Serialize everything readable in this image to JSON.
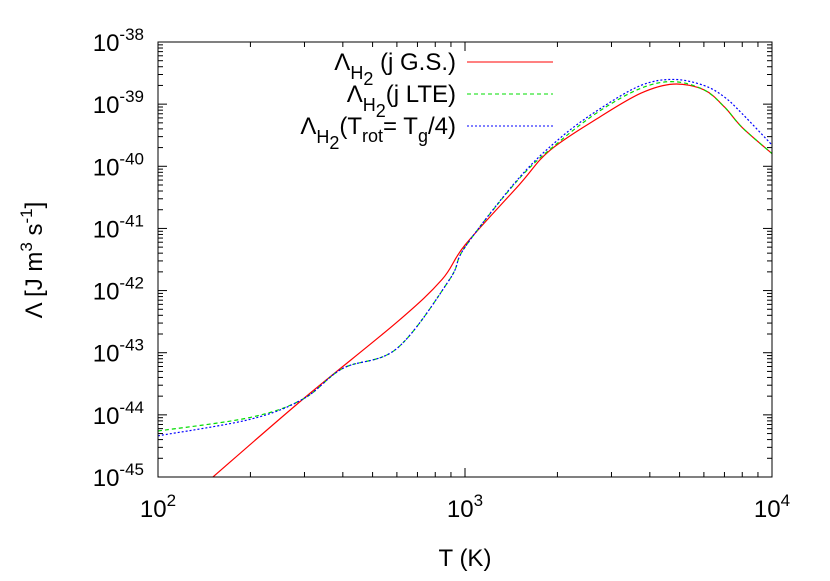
{
  "chart_data": {
    "type": "line",
    "xlabel": "T (K)",
    "ylabel": {
      "main": "Λ [J m",
      "exp1": "3",
      "mid": " s",
      "exp2": "-1",
      "end": "]"
    },
    "xscale": "log",
    "yscale": "log",
    "xlim": [
      100,
      10000
    ],
    "ylim": [
      1e-45,
      1e-38
    ],
    "grid": false,
    "legend_position": "top-right",
    "xticks": [
      {
        "base": "10",
        "exp": "2"
      },
      {
        "base": "10",
        "exp": "3"
      },
      {
        "base": "10",
        "exp": "4"
      }
    ],
    "yticks": [
      {
        "base": "10",
        "exp": "-38"
      },
      {
        "base": "10",
        "exp": "-39"
      },
      {
        "base": "10",
        "exp": "-40"
      },
      {
        "base": "10",
        "exp": "-41"
      },
      {
        "base": "10",
        "exp": "-42"
      },
      {
        "base": "10",
        "exp": "-43"
      },
      {
        "base": "10",
        "exp": "-44"
      },
      {
        "base": "10",
        "exp": "-45"
      }
    ],
    "series": [
      {
        "name": {
          "sym": "Λ",
          "sub": "H",
          "subsub": "2",
          "text": " (j G.S.)"
        },
        "color": "#ff0000",
        "dash": "solid",
        "points": [
          [
            151,
            1e-45
          ],
          [
            297,
            1.8e-44
          ],
          [
            600,
            3.1e-43
          ],
          [
            841,
            1.5e-42
          ],
          [
            1000,
            5.4e-42
          ],
          [
            1500,
            5e-41
          ],
          [
            1890,
            1.8e-40
          ],
          [
            2760,
            6.3e-40
          ],
          [
            3740,
            1.5e-39
          ],
          [
            4770,
            2.1e-39
          ],
          [
            6000,
            1.7e-39
          ],
          [
            7000,
            9e-40
          ],
          [
            8000,
            4.2e-40
          ],
          [
            10000,
            1.6e-40
          ]
        ]
      },
      {
        "name": {
          "sym": "Λ",
          "sub": "H",
          "subsub": "2",
          "text": "(j LTE)"
        },
        "color": "#00dd00",
        "dash": "dashed",
        "points": [
          [
            100,
            5.5e-45
          ],
          [
            200,
            9.1e-45
          ],
          [
            297,
            1.8e-44
          ],
          [
            400,
            5.6e-44
          ],
          [
            600,
            1.17e-43
          ],
          [
            890,
            1.5e-42
          ],
          [
            1000,
            5e-42
          ],
          [
            1500,
            6.3e-41
          ],
          [
            2050,
            2.6e-40
          ],
          [
            2760,
            7.9e-40
          ],
          [
            3740,
            1.8e-39
          ],
          [
            4770,
            2.3e-39
          ],
          [
            6000,
            1.7e-39
          ],
          [
            7000,
            9e-40
          ],
          [
            8000,
            4.2e-40
          ],
          [
            10000,
            1.6e-40
          ]
        ]
      },
      {
        "name": {
          "sym": "Λ",
          "sub": "H",
          "subsub": "2",
          "text": "(T",
          "tsub": "rot",
          "text2": "= T",
          "tsub2": "g",
          "text3": "/4)"
        },
        "color": "#0000ff",
        "dash": "dotted",
        "points": [
          [
            100,
            4.6e-45
          ],
          [
            200,
            8.5e-45
          ],
          [
            297,
            1.8e-44
          ],
          [
            400,
            5.6e-44
          ],
          [
            600,
            1.17e-43
          ],
          [
            890,
            1.5e-42
          ],
          [
            1000,
            5e-42
          ],
          [
            1500,
            6.5e-41
          ],
          [
            2050,
            2.9e-40
          ],
          [
            2760,
            8.5e-40
          ],
          [
            3740,
            2e-39
          ],
          [
            4770,
            2.5e-39
          ],
          [
            6000,
            2e-39
          ],
          [
            7000,
            1.3e-39
          ],
          [
            8000,
            7e-40
          ],
          [
            10000,
            2.2e-40
          ]
        ]
      }
    ]
  }
}
